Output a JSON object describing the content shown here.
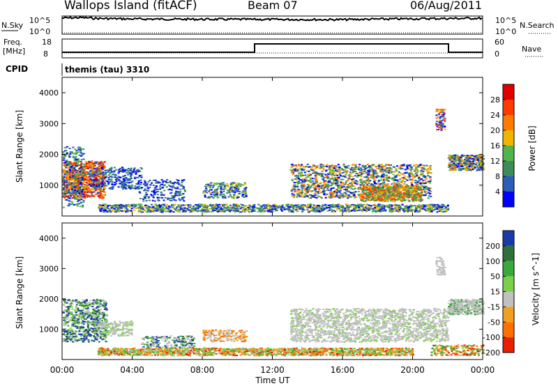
{
  "header": {
    "station": "Wallops Island (fitACF)",
    "beam": "Beam 07",
    "date": "06/Aug/2011"
  },
  "top_panel": {
    "nsky_label": "N.Sky",
    "nsearch_label": "N.Search",
    "y_top_left": "10^5",
    "y_bottom_left": "10^0",
    "y_top_right": "10^5",
    "y_bottom_right": "10^0"
  },
  "freq_panel": {
    "freq_label": "Freq.",
    "unit_label": "[MHz]",
    "nave_label": "Nave",
    "left_ticks": [
      "18",
      "8"
    ],
    "right_ticks": [
      "60",
      "0"
    ]
  },
  "cpid": {
    "label": "CPID",
    "value": "themis (tau) 3310"
  },
  "x_axis": {
    "title": "Time UT",
    "ticks": [
      "00:00",
      "04:00",
      "08:00",
      "12:00",
      "16:00",
      "20:00",
      "00:00"
    ]
  },
  "power_panel": {
    "ylabel": "Slant Range [km]",
    "yticks": [
      "1000",
      "2000",
      "3000",
      "4000"
    ],
    "colorbar_label": "Power [dB]",
    "colorbar_ticks": [
      "4",
      "8",
      "12",
      "16",
      "20",
      "24",
      "28"
    ],
    "colors": [
      "#0000ff",
      "#2a5cb8",
      "#3e8a5a",
      "#52b44a",
      "#f0b400",
      "#ff7a00",
      "#ff3a00",
      "#e00000"
    ]
  },
  "velocity_panel": {
    "ylabel": "Slant Range [km]",
    "yticks": [
      "1000",
      "2000",
      "3000",
      "4000"
    ],
    "colorbar_label": "Velocity [m s^-1]",
    "colorbar_ticks": [
      "200",
      "100",
      "50",
      "15",
      "-15",
      "-50",
      "-100",
      "-200"
    ],
    "colors": [
      "#1a3aa8",
      "#2f6f3a",
      "#3aa83a",
      "#7ad04a",
      "#c0c0c0",
      "#f0a020",
      "#ff7000",
      "#e82000"
    ]
  },
  "chart_data": [
    {
      "type": "line",
      "title": "",
      "xlabel": "",
      "ylabel": "",
      "x_range": [
        "00:00",
        "24:00"
      ],
      "series": [
        {
          "name": "N.Sky",
          "x": [
            0,
            1,
            2,
            4,
            8,
            12,
            16,
            20,
            24
          ],
          "values": [
            100000,
            150000,
            80000,
            50000,
            40000,
            35000,
            30000,
            60000,
            90000
          ]
        },
        {
          "name": "N.Search",
          "x": [
            0,
            12,
            24
          ],
          "values": [
            1,
            1,
            1
          ]
        }
      ],
      "yscale": "log"
    },
    {
      "type": "line",
      "title": "",
      "xlabel": "",
      "ylabel": "Freq. [MHz]",
      "series": [
        {
          "name": "Freq.",
          "x": [
            0,
            11,
            11,
            22,
            22,
            24
          ],
          "values": [
            10.8,
            10.8,
            16.6,
            16.6,
            10.8,
            10.8
          ],
          "ylim": [
            8,
            18
          ]
        },
        {
          "name": "Nave",
          "x": [
            0,
            24
          ],
          "values": [
            30,
            30
          ],
          "ylim": [
            0,
            60
          ]
        }
      ]
    },
    {
      "type": "heatmap",
      "xlabel": "Time UT",
      "ylabel": "Slant Range [km]",
      "zlabel": "Power [dB]",
      "x_range": [
        "00:00",
        "24:00"
      ],
      "ylim": [
        0,
        4500
      ],
      "zlim": [
        0,
        30
      ]
    },
    {
      "type": "heatmap",
      "xlabel": "Time UT",
      "ylabel": "Slant Range [km]",
      "zlabel": "Velocity [m s^-1]",
      "x_range": [
        "00:00",
        "24:00"
      ],
      "ylim": [
        0,
        4500
      ],
      "zlim": [
        -200,
        200
      ]
    }
  ]
}
